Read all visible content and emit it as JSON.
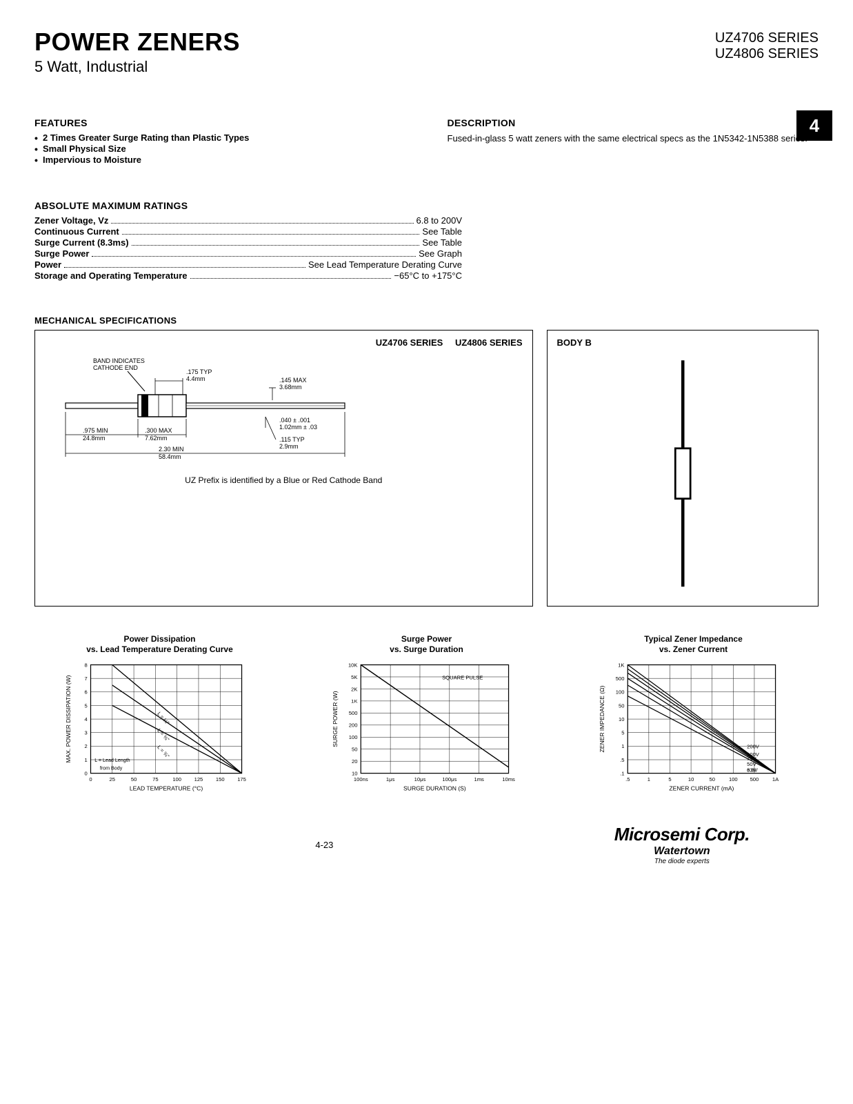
{
  "header": {
    "title": "POWER ZENERS",
    "subtitle": "5 Watt, Industrial",
    "series1": "UZ4706 SERIES",
    "series2": "UZ4806 SERIES"
  },
  "features": {
    "heading": "FEATURES",
    "items": [
      "2 Times Greater Surge Rating than Plastic Types",
      "Small Physical Size",
      "Impervious to Moisture"
    ]
  },
  "description": {
    "heading": "DESCRIPTION",
    "text": "Fused-in-glass 5 watt zeners with the same electrical specs as the 1N5342-1N5388 series."
  },
  "tab_number": "4",
  "ratings": {
    "heading": "ABSOLUTE MAXIMUM RATINGS",
    "rows": [
      {
        "label": "Zener Voltage, Vz",
        "value": "6.8 to 200V"
      },
      {
        "label": "Continuous Current",
        "value": "See Table"
      },
      {
        "label": "Surge Current (8.3ms)",
        "value": "See Table"
      },
      {
        "label": "Surge Power",
        "value": "See Graph"
      },
      {
        "label": "Power",
        "value": "See Lead Temperature Derating Curve"
      },
      {
        "label": "Storage and Operating Temperature",
        "value": "−65°C to +175°C"
      }
    ]
  },
  "mechanical": {
    "heading": "MECHANICAL SPECIFICATIONS",
    "series_label_1": "UZ4706 SERIES",
    "series_label_2": "UZ4806 SERIES",
    "body_label": "BODY B",
    "band_note": "BAND INDICATES CATHODE END",
    "dims": {
      "typ_175": ".175 TYP",
      "typ_175_mm": "4.4mm",
      "max_145": ".145 MAX",
      "max_145_mm": "3.68mm",
      "dia_040": ".040 ± .001",
      "dia_040_mm": "1.02mm ± .03",
      "typ_115": ".115 TYP",
      "typ_115_mm": "2.9mm",
      "min_975": ".975 MIN",
      "min_975_mm": "24.8mm",
      "max_300": ".300 MAX",
      "max_300_mm": "7.62mm",
      "min_230": "2.30 MIN",
      "min_230_mm": "58.4mm"
    },
    "prefix_note": "UZ Prefix is identified by a Blue or Red Cathode Band"
  },
  "chart1": {
    "title_line1": "Power Dissipation",
    "title_line2": "vs. Lead Temperature Derating Curve",
    "ylabel": "MAX. POWER DISSIPATION (W)",
    "xlabel": "LEAD TEMPERATURE (°C)",
    "xlim": [
      0,
      175
    ],
    "ylim": [
      0,
      8
    ],
    "xticks": [
      0,
      25,
      50,
      75,
      100,
      125,
      150,
      175
    ],
    "yticks": [
      0,
      1,
      2,
      3,
      4,
      5,
      6,
      7,
      8
    ],
    "note_label": "L = Lead Length from Body",
    "curve_labels": [
      "L = ⅛\"",
      "L = ⅜\"",
      "L = ¾\""
    ],
    "curves": [
      [
        [
          25,
          8
        ],
        [
          175,
          0
        ]
      ],
      [
        [
          25,
          6.5
        ],
        [
          175,
          0
        ]
      ],
      [
        [
          25,
          5
        ],
        [
          175,
          0
        ]
      ]
    ],
    "line_color": "#000000",
    "grid_color": "#000000",
    "bg": "#ffffff",
    "axis_fontsize": 9,
    "tick_fontsize": 8
  },
  "chart2": {
    "title_line1": "Surge Power",
    "title_line2": "vs. Surge Duration",
    "ylabel": "SURGE POWER (W)",
    "xlabel": "SURGE DURATION (S)",
    "note": "SQUARE PULSE",
    "xticks_labels": [
      "100ns",
      "1μs",
      "10μs",
      "100μs",
      "1ms",
      "10ms"
    ],
    "yticks": [
      10,
      20,
      50,
      100,
      200,
      500,
      "1K",
      "2K",
      "5K",
      "10K"
    ],
    "ylog": true,
    "xlog": true,
    "curve": [
      [
        0,
        9
      ],
      [
        5,
        0.5
      ]
    ],
    "line_color": "#000000",
    "grid_color": "#000000",
    "bg": "#ffffff",
    "axis_fontsize": 9,
    "tick_fontsize": 8
  },
  "chart3": {
    "title_line1": "Typical Zener Impedance",
    "title_line2": "vs. Zener Current",
    "ylabel": "ZENER IMPEDANCE (Ω)",
    "xlabel": "ZENER CURRENT (mA)",
    "xticks_labels": [
      ".5",
      "1",
      "5",
      "10",
      "50",
      "100",
      "500",
      "1A"
    ],
    "yticks": [
      ".1",
      ".5",
      "1",
      "5",
      "10",
      "50",
      "100",
      "500",
      "1K"
    ],
    "ylog": true,
    "xlog": true,
    "curve_labels": [
      "200V",
      "100V",
      "75V",
      "50V",
      "33V",
      "6.8V"
    ],
    "curves_start_y": [
      8.3,
      7.7,
      7.4,
      7.0,
      6.5,
      5.7
    ],
    "curves_slope": -1.2,
    "line_color": "#000000",
    "grid_color": "#000000",
    "bg": "#ffffff",
    "axis_fontsize": 9,
    "tick_fontsize": 8
  },
  "footer": {
    "page_number": "4-23",
    "logo_main": "Microsemi Corp.",
    "logo_sub": "Watertown",
    "logo_tag": "The diode experts"
  }
}
